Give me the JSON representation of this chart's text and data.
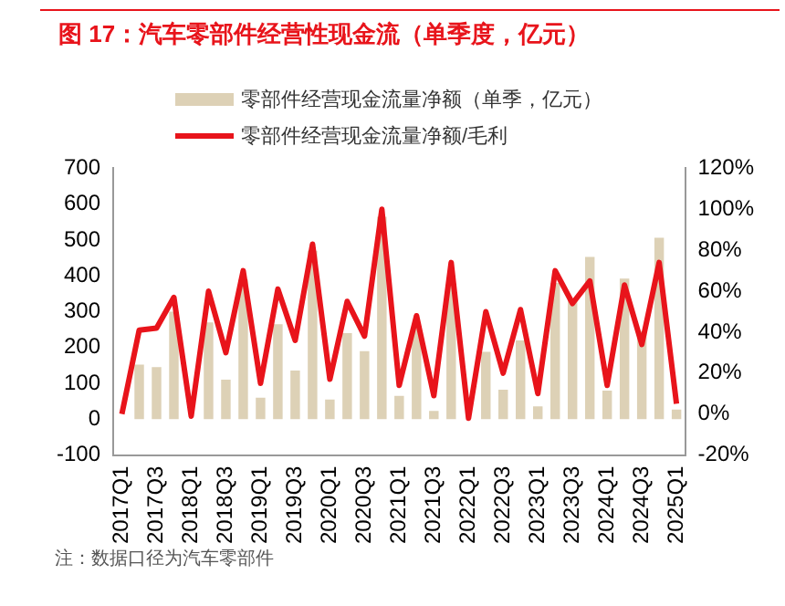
{
  "chart_data": {
    "type": "bar",
    "title": "图 17：汽车零部件经营性现金流（单季度，亿元）",
    "categories": [
      "2017Q1",
      null,
      "2017Q3",
      null,
      "2018Q1",
      null,
      "2018Q3",
      null,
      "2019Q1",
      null,
      "2019Q3",
      null,
      "2020Q1",
      null,
      "2020Q3",
      null,
      "2021Q1",
      null,
      "2021Q3",
      null,
      "2022Q1",
      null,
      "2022Q3",
      null,
      "2023Q1",
      null,
      "2023Q3",
      null,
      "2024Q1",
      null,
      "2024Q3",
      null,
      "2025Q1"
    ],
    "series": [
      {
        "name": "零部件经营现金流量净额（单季，亿元）",
        "color": "#ddd1b6",
        "values": [
          0,
          152,
          145,
          300,
          0,
          270,
          110,
          390,
          60,
          265,
          136,
          470,
          55,
          240,
          190,
          565,
          65,
          256,
          23,
          380,
          0,
          188,
          82,
          220,
          36,
          380,
          335,
          453,
          80,
          392,
          245,
          506,
          27
        ]
      },
      {
        "name": "零部件经营现金流量净额/毛利",
        "type": "line",
        "axis": "y2",
        "color": "#e8141b",
        "values": [
          0,
          41,
          42,
          57,
          -1,
          60,
          30,
          70,
          15,
          61,
          36,
          83,
          17,
          55,
          38,
          100,
          14,
          48,
          9,
          74,
          -2,
          50,
          20,
          51,
          10,
          70,
          54,
          65,
          14,
          63,
          34,
          74,
          5
        ]
      }
    ],
    "ylim": [
      -100,
      700
    ],
    "yticks": [
      -100,
      0,
      100,
      200,
      300,
      400,
      500,
      600,
      700
    ],
    "y2lim": [
      -20,
      120
    ],
    "y2ticks": [
      {
        "value": -20,
        "label": "-20%"
      },
      {
        "value": 0,
        "label": "0%"
      },
      {
        "value": 20,
        "label": "20%"
      },
      {
        "value": 40,
        "label": "40%"
      },
      {
        "value": 60,
        "label": "60%"
      },
      {
        "value": 80,
        "label": "80%"
      },
      {
        "value": 100,
        "label": "100%"
      },
      {
        "value": 120,
        "label": "120%"
      }
    ],
    "grid": false,
    "legend": "top",
    "marker": "none",
    "annotations": [
      "注：数据口径为汽车零部件"
    ]
  }
}
